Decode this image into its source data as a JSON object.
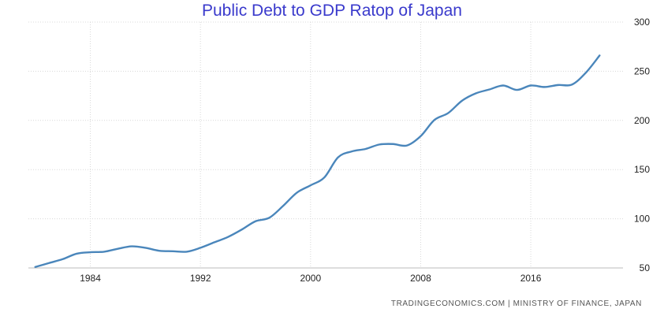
{
  "colors": {
    "title": "#3a3acc",
    "line": "#4a86bb",
    "grid": "#d8d8d8",
    "axis": "#bbbbbb"
  },
  "source": "TRADINGECONOMICS.COM  |  MINISTRY OF FINANCE, JAPAN",
  "chart_data": {
    "type": "line",
    "title": "Public Debt to GDP Ratop of Japan",
    "xlabel": "",
    "ylabel": "",
    "xlim": [
      1979.5,
      2022.7
    ],
    "ylim": [
      50,
      300
    ],
    "x_ticks": [
      1984,
      1992,
      2000,
      2008,
      2016
    ],
    "y_ticks": [
      50,
      100,
      150,
      200,
      250,
      300
    ],
    "y_axis_position": "right",
    "grid": true,
    "legend": "none",
    "series": [
      {
        "x": [
          1980,
          1981,
          1982,
          1983,
          1984,
          1985,
          1986,
          1987,
          1988,
          1989,
          1990,
          1991,
          1992,
          1993,
          1994,
          1995,
          1996,
          1997,
          1998,
          1999,
          2000,
          2001,
          2002,
          2003,
          2004,
          2005,
          2006,
          2007,
          2008,
          2009,
          2010,
          2011,
          2012,
          2013,
          2014,
          2015,
          2016,
          2017,
          2018,
          2019,
          2020,
          2021
        ],
        "values": [
          51,
          55,
          59,
          64.5,
          66,
          66.5,
          69.5,
          72,
          70.5,
          67.5,
          67,
          66.5,
          70.5,
          76,
          81.5,
          89,
          97.5,
          101,
          113,
          126.5,
          134,
          142,
          162.5,
          168.5,
          171,
          175.5,
          176,
          174.5,
          184,
          200.5,
          207.5,
          220,
          227.5,
          231.5,
          235.5,
          231,
          235.5,
          234,
          236,
          236.5,
          248.5,
          266
        ]
      }
    ]
  }
}
